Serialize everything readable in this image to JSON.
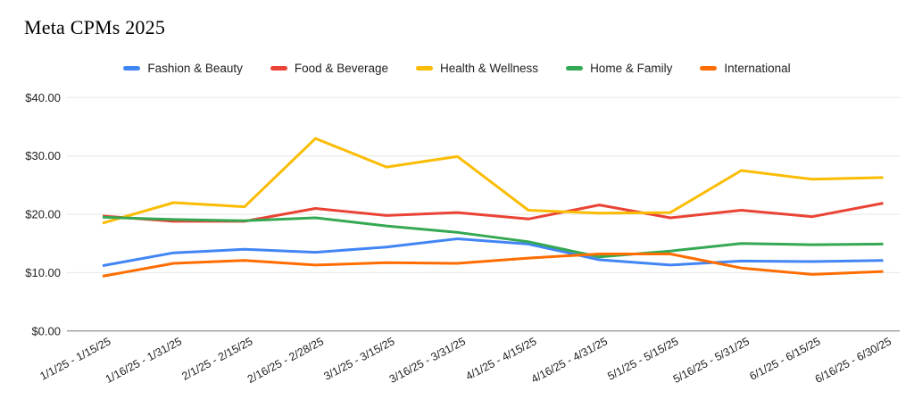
{
  "chart_data": {
    "type": "line",
    "title": "Meta CPMs 2025",
    "categories": [
      "1/1/25 - 1/15/25",
      "1/16/25 - 1/31/25",
      "2/1/25 - 2/15/25",
      "2/16/25 - 2/28/25",
      "3/1/25 - 3/15/25",
      "3/16/25 - 3/31/25",
      "4/1/25 - 4/15/25",
      "4/16/25 - 4/31/25",
      "5/1/25 - 5/15/25",
      "5/16/25 - 5/31/25",
      "6/1/25 - 6/15/25",
      "6/16/25 - 6/30/25"
    ],
    "series": [
      {
        "name": "Fashion & Beauty",
        "color": "#4285F4",
        "values": [
          11.2,
          13.4,
          14.0,
          13.5,
          14.4,
          15.8,
          14.9,
          12.2,
          11.3,
          12.0,
          11.9,
          12.1
        ]
      },
      {
        "name": "Food & Beverage",
        "color": "#EA4335",
        "values": [
          19.7,
          18.8,
          18.8,
          21.0,
          19.8,
          20.3,
          19.2,
          21.6,
          19.4,
          20.7,
          19.6,
          21.9
        ]
      },
      {
        "name": "Health & Wellness",
        "color": "#FBBC04",
        "values": [
          18.5,
          22.0,
          21.3,
          33.0,
          28.1,
          29.9,
          20.7,
          20.2,
          20.3,
          27.5,
          26.0,
          26.3
        ]
      },
      {
        "name": "Home & Family",
        "color": "#34A853",
        "values": [
          19.5,
          19.1,
          18.9,
          19.4,
          18.0,
          16.9,
          15.3,
          12.7,
          13.7,
          15.0,
          14.8,
          14.9
        ]
      },
      {
        "name": "International",
        "color": "#FF6D01",
        "values": [
          9.4,
          11.6,
          12.1,
          11.3,
          11.7,
          11.6,
          12.5,
          13.2,
          13.2,
          10.8,
          9.7,
          10.2
        ]
      }
    ],
    "y_axis": {
      "min": 0,
      "max": 40,
      "ticks": [
        {
          "value": 0,
          "label": "$0.00"
        },
        {
          "value": 10,
          "label": "$10.00"
        },
        {
          "value": 20,
          "label": "$20.00"
        },
        {
          "value": 30,
          "label": "$30.00"
        },
        {
          "value": 40,
          "label": "$40.00"
        }
      ]
    },
    "legend_position": "top",
    "grid": true,
    "colors": {
      "background": "#ffffff",
      "gridline": "#e6e6e6",
      "zero_axis": "#757575",
      "axis_text": "#1f1f1f"
    }
  }
}
